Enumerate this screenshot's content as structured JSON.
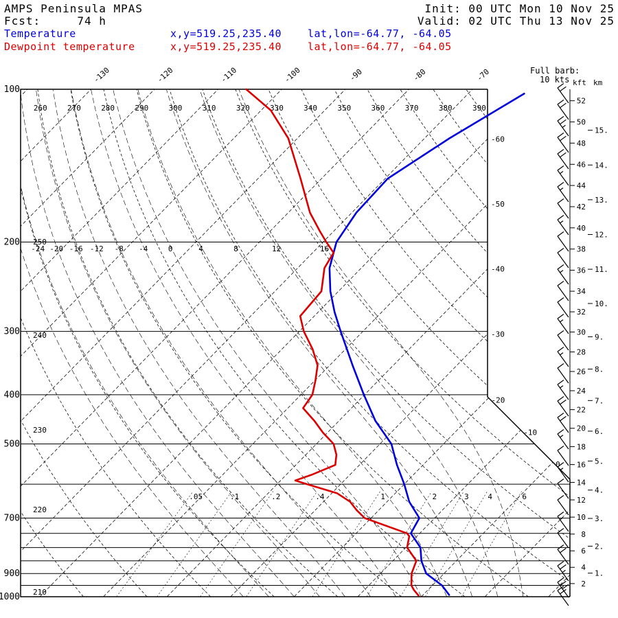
{
  "header": {
    "model": "AMPS Peninsula MPAS",
    "fcst": "Fcst:     74 h",
    "init": "Init: 00 UTC Mon 10 Nov 25",
    "valid": "Valid: 02 UTC Thu 13 Nov 25"
  },
  "legend": {
    "temp": {
      "label": "Temperature",
      "xy": "x,y=519.25,235.40",
      "latlon": "lat,lon=-64.77, -64.05"
    },
    "dew": {
      "label": "Dewpoint temperature",
      "xy": "x,y=519.25,235.40",
      "latlon": "lat,lon=-64.77, -64.05"
    }
  },
  "barb_note": {
    "title": "Full barb:",
    "value": "10 kts"
  },
  "colors": {
    "temperature": "#0000dd",
    "dewpoint": "#dd0000"
  },
  "chart_data": {
    "type": "line",
    "chart_kind": "skew-t-log-p",
    "pressure_axis": {
      "unit": "hPa",
      "range": [
        100,
        1000
      ],
      "lines": [
        100,
        200,
        300,
        400,
        500,
        600,
        700,
        750,
        800,
        850,
        900,
        950,
        1000
      ],
      "labeled": [
        100,
        200,
        300,
        400,
        500,
        700,
        900,
        1000
      ]
    },
    "temperature_axis": {
      "unit": "degC",
      "isotherm_step": 10,
      "isotherm_range": [
        -140,
        40
      ],
      "top_labels": [
        -130,
        -120,
        -110,
        -100,
        -90,
        -80,
        -70
      ],
      "right_labels": [
        -60,
        -50,
        -40,
        -30,
        -20,
        -10,
        0
      ]
    },
    "dry_adiabats": {
      "unit": "K",
      "values": [
        210,
        220,
        230,
        240,
        250,
        260,
        270,
        280,
        290,
        300,
        310,
        320,
        330,
        340,
        350,
        360,
        370,
        380,
        390
      ],
      "top_labels": [
        260,
        270,
        280,
        290,
        300,
        310,
        320,
        330,
        340,
        350,
        360,
        370,
        380,
        390
      ],
      "left_labels": [
        250,
        240,
        230,
        220,
        210
      ]
    },
    "moist_adiabats": {
      "unit": "degC",
      "values": [
        -28,
        -24,
        -20,
        -16,
        -12,
        -8,
        -4,
        0,
        4,
        8,
        12,
        16
      ],
      "labeled": [
        -24,
        -20,
        -16,
        -12,
        -8,
        -4,
        0,
        4,
        8,
        12,
        16
      ]
    },
    "mixing_ratio": {
      "unit": "g/kg",
      "values": [
        0.05,
        0.1,
        0.2,
        0.4,
        1,
        2,
        3,
        4,
        6
      ],
      "labels": {
        "0.05": ".05",
        "0.1": ".1",
        "0.2": ".2",
        "0.4": ".4",
        "1": "1",
        "2": "2",
        "3": "3",
        "4": "4",
        "6": "6"
      }
    },
    "series": [
      {
        "name": "Temperature",
        "color": "#0000dd",
        "points": [
          [
            992,
            4.1
          ],
          [
            950,
            1.5
          ],
          [
            900,
            -2.8
          ],
          [
            850,
            -5.5
          ],
          [
            800,
            -7.7
          ],
          [
            750,
            -11.4
          ],
          [
            700,
            -12.4
          ],
          [
            650,
            -16.5
          ],
          [
            600,
            -20.0
          ],
          [
            550,
            -24.1
          ],
          [
            500,
            -28.2
          ],
          [
            450,
            -34.3
          ],
          [
            400,
            -40.1
          ],
          [
            350,
            -46.4
          ],
          [
            300,
            -53.5
          ],
          [
            275,
            -57.4
          ],
          [
            250,
            -61.3
          ],
          [
            225,
            -65.0
          ],
          [
            200,
            -67.9
          ],
          [
            175,
            -69.3
          ],
          [
            150,
            -69.6
          ],
          [
            125,
            -66.1
          ],
          [
            102,
            -61.2
          ]
        ]
      },
      {
        "name": "Dewpoint temperature",
        "color": "#dd0000",
        "points": [
          [
            995,
            -0.6
          ],
          [
            970,
            -2.2
          ],
          [
            950,
            -3.3
          ],
          [
            900,
            -5.1
          ],
          [
            850,
            -6.3
          ],
          [
            800,
            -9.8
          ],
          [
            760,
            -11.2
          ],
          [
            750,
            -12.0
          ],
          [
            700,
            -21.0
          ],
          [
            675,
            -23.5
          ],
          [
            650,
            -25.8
          ],
          [
            625,
            -29.2
          ],
          [
            600,
            -35.3
          ],
          [
            590,
            -37.7
          ],
          [
            575,
            -36.0
          ],
          [
            550,
            -33.8
          ],
          [
            525,
            -35.2
          ],
          [
            500,
            -37.3
          ],
          [
            475,
            -40.7
          ],
          [
            450,
            -43.9
          ],
          [
            425,
            -47.6
          ],
          [
            400,
            -48.2
          ],
          [
            375,
            -49.9
          ],
          [
            350,
            -51.9
          ],
          [
            325,
            -55.2
          ],
          [
            300,
            -59.3
          ],
          [
            280,
            -62.2
          ],
          [
            250,
            -62.7
          ],
          [
            225,
            -65.8
          ],
          [
            210,
            -66.7
          ],
          [
            200,
            -69.5
          ],
          [
            190,
            -72.3
          ],
          [
            175,
            -76.6
          ],
          [
            150,
            -83.3
          ],
          [
            125,
            -91.4
          ],
          [
            110,
            -98.5
          ],
          [
            100,
            -105.6
          ]
        ]
      }
    ],
    "height_scales": {
      "kft_label": "kft",
      "km_label": "km",
      "kft": [
        2,
        4,
        6,
        8,
        10,
        12,
        14,
        16,
        18,
        20,
        22,
        24,
        26,
        28,
        30,
        32,
        34,
        36,
        38,
        40,
        42,
        44,
        46,
        48,
        50,
        52
      ],
      "km": [
        1,
        2,
        3,
        4,
        5,
        6,
        7,
        8,
        9,
        10,
        11,
        12,
        13,
        14,
        15
      ]
    },
    "wind_barbs": {
      "full_barb_kts": 10,
      "station_x": 828,
      "levels": [
        [
          150,
          2,
          0
        ],
        [
          174,
          2,
          0
        ],
        [
          198,
          2,
          1
        ],
        [
          222,
          2,
          0
        ],
        [
          246,
          2,
          0
        ],
        [
          270,
          1,
          1
        ],
        [
          294,
          1,
          1
        ],
        [
          318,
          1,
          0
        ],
        [
          342,
          1,
          1
        ],
        [
          366,
          1,
          0
        ],
        [
          390,
          1,
          0
        ],
        [
          414,
          1,
          1
        ],
        [
          438,
          1,
          0
        ],
        [
          462,
          1,
          0
        ],
        [
          486,
          1,
          1
        ],
        [
          510,
          1,
          0
        ],
        [
          534,
          1,
          1
        ],
        [
          558,
          1,
          0
        ],
        [
          582,
          1,
          1
        ],
        [
          606,
          2,
          0
        ],
        [
          630,
          2,
          0
        ],
        [
          654,
          1,
          1
        ],
        [
          678,
          1,
          0
        ],
        [
          702,
          1,
          1
        ],
        [
          726,
          1,
          0
        ],
        [
          750,
          1,
          0
        ],
        [
          774,
          1,
          1
        ],
        [
          798,
          1,
          0
        ],
        [
          822,
          2,
          0
        ],
        [
          846,
          2,
          1
        ],
        [
          870,
          3,
          0
        ],
        [
          882,
          2,
          0
        ]
      ]
    }
  }
}
